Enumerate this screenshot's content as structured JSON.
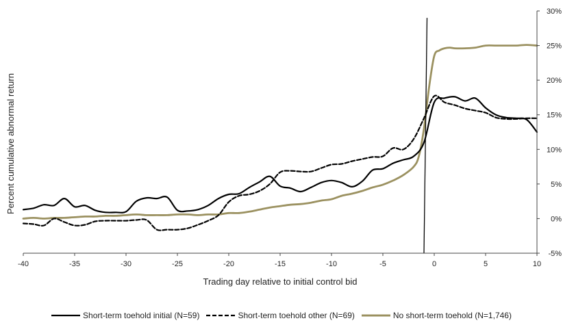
{
  "chart_data": {
    "type": "line",
    "title": "",
    "xlabel": "Trading day relative to initial control bid",
    "ylabel": "Percent cumulative abnormal return",
    "xlim": [
      -40,
      10
    ],
    "ylim": [
      -5,
      30
    ],
    "xticks": [
      -40,
      -35,
      -30,
      -25,
      -20,
      -15,
      -10,
      -5,
      0,
      5,
      10
    ],
    "xtick_labels": [
      "-40",
      "-35",
      "-30",
      "-25",
      "-20",
      "-15",
      "-10",
      "-5",
      "0",
      "5",
      "10"
    ],
    "yticks": [
      -5,
      0,
      5,
      10,
      15,
      20,
      25,
      30
    ],
    "ytick_labels": [
      "-5%",
      "0%",
      "5%",
      "10%",
      "15%",
      "20%",
      "25%",
      "30%"
    ],
    "y_axis_side": "right",
    "grid": false,
    "legend_position": "bottom",
    "vertical_marker": {
      "x1": -1,
      "y1": -5,
      "x2": -0.7,
      "y2": 29
    },
    "series": [
      {
        "name": "Short-term toehold initial (N=59)",
        "color": "#000000",
        "dash": "solid",
        "x": [
          -40,
          -39,
          -38,
          -37,
          -36,
          -35,
          -34,
          -33,
          -32,
          -31,
          -30,
          -29,
          -28,
          -27,
          -26,
          -25,
          -24,
          -23,
          -22,
          -21,
          -20,
          -19,
          -18,
          -17,
          -16,
          -15,
          -14,
          -13,
          -12,
          -11,
          -10,
          -9,
          -8,
          -7,
          -6,
          -5,
          -4,
          -3,
          -2,
          -1,
          0,
          1,
          2,
          3,
          4,
          5,
          6,
          7,
          8,
          9,
          10
        ],
        "y": [
          1.3,
          1.5,
          2.0,
          1.9,
          2.9,
          1.7,
          1.9,
          1.2,
          0.9,
          0.9,
          1.0,
          2.5,
          3.0,
          2.9,
          3.1,
          1.2,
          1.1,
          1.3,
          1.9,
          2.9,
          3.5,
          3.6,
          4.5,
          5.3,
          6.1,
          4.7,
          4.4,
          3.9,
          4.5,
          5.2,
          5.5,
          5.2,
          4.6,
          5.4,
          7.0,
          7.2,
          8.0,
          8.5,
          9.0,
          11.0,
          16.8,
          17.4,
          17.6,
          17.0,
          17.4,
          16.0,
          15.0,
          14.6,
          14.5,
          14.3,
          12.5
        ]
      },
      {
        "name": "Short-term toehold other (N=69)",
        "color": "#000000",
        "dash": "dashed",
        "x": [
          -40,
          -39,
          -38,
          -37,
          -36,
          -35,
          -34,
          -33,
          -32,
          -31,
          -30,
          -29,
          -28,
          -27,
          -26,
          -25,
          -24,
          -23,
          -22,
          -21,
          -20,
          -19,
          -18,
          -17,
          -16,
          -15,
          -14,
          -13,
          -12,
          -11,
          -10,
          -9,
          -8,
          -7,
          -6,
          -5,
          -4,
          -3,
          -2,
          -1,
          0,
          1,
          2,
          3,
          4,
          5,
          6,
          7,
          8,
          9,
          10
        ],
        "y": [
          -0.7,
          -0.8,
          -1.0,
          0.0,
          -0.5,
          -1.0,
          -0.9,
          -0.4,
          -0.3,
          -0.3,
          -0.3,
          -0.2,
          -0.2,
          -1.6,
          -1.6,
          -1.6,
          -1.4,
          -0.9,
          -0.3,
          0.5,
          2.4,
          3.3,
          3.5,
          4.0,
          5.0,
          6.7,
          6.9,
          6.8,
          6.8,
          7.3,
          7.8,
          7.9,
          8.3,
          8.6,
          8.9,
          9.0,
          10.2,
          10.0,
          11.5,
          14.5,
          17.7,
          16.8,
          16.4,
          15.9,
          15.6,
          15.3,
          14.6,
          14.4,
          14.4,
          14.5,
          14.5
        ]
      },
      {
        "name": "No short-term toehold (N=1,746)",
        "color": "#9b9160",
        "dash": "solid",
        "x": [
          -40,
          -39,
          -38,
          -37,
          -36,
          -35,
          -34,
          -33,
          -32,
          -31,
          -30,
          -29,
          -28,
          -27,
          -26,
          -25,
          -24,
          -23,
          -22,
          -21,
          -20,
          -19,
          -18,
          -17,
          -16,
          -15,
          -14,
          -13,
          -12,
          -11,
          -10,
          -9,
          -8,
          -7,
          -6,
          -5,
          -4,
          -3,
          -2,
          -1.5,
          -1,
          -0.5,
          0,
          0.5,
          1,
          1.5,
          2,
          3,
          4,
          5,
          6,
          7,
          8,
          9,
          10
        ],
        "y": [
          0.0,
          0.1,
          0.0,
          0.1,
          0.1,
          0.2,
          0.3,
          0.3,
          0.4,
          0.4,
          0.5,
          0.6,
          0.5,
          0.5,
          0.5,
          0.6,
          0.6,
          0.5,
          0.6,
          0.6,
          0.8,
          0.8,
          1.0,
          1.3,
          1.6,
          1.8,
          2.0,
          2.1,
          2.3,
          2.6,
          2.8,
          3.3,
          3.6,
          4.0,
          4.5,
          4.9,
          5.5,
          6.3,
          7.5,
          9.0,
          13.0,
          19.0,
          23.5,
          24.3,
          24.6,
          24.7,
          24.6,
          24.6,
          24.7,
          25.0,
          25.0,
          25.0,
          25.0,
          25.1,
          25.0
        ]
      }
    ]
  }
}
